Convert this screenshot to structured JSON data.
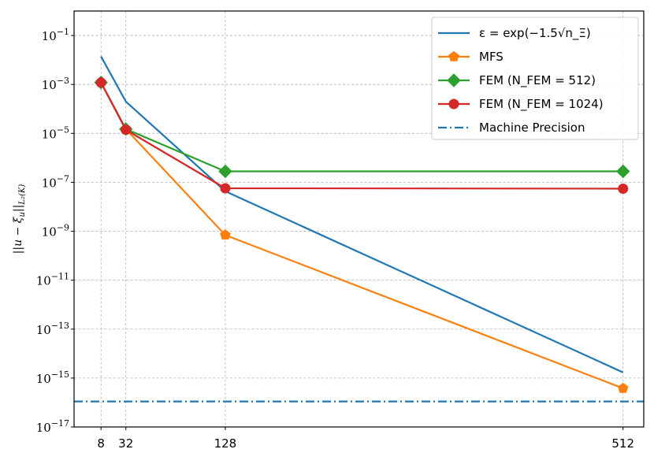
{
  "chart_data": {
    "type": "line",
    "yscale": "log",
    "xscale": "linear",
    "xlim": [
      -18,
      532
    ],
    "ylim": [
      1e-17,
      1
    ],
    "grid": true,
    "legend_position": "top-right",
    "ylabel": "||u − ξ_u||_{L_2(K)}",
    "xticks": [
      8,
      32,
      128,
      512
    ],
    "xtick_labels": [
      "8",
      "32",
      "128",
      "512"
    ],
    "yticks": [
      0.1,
      0.001,
      1e-05,
      1e-07,
      1e-09,
      1e-11,
      1e-13,
      1e-15,
      1e-17
    ],
    "ytick_labels": [
      {
        "base": "10",
        "exp": "−1"
      },
      {
        "base": "10",
        "exp": "−3"
      },
      {
        "base": "10",
        "exp": "−5"
      },
      {
        "base": "10",
        "exp": "−7"
      },
      {
        "base": "10",
        "exp": "−9"
      },
      {
        "base": "10",
        "exp": "−11"
      },
      {
        "base": "10",
        "exp": "−13"
      },
      {
        "base": "10",
        "exp": "−15"
      },
      {
        "base": "10",
        "exp": "−17"
      }
    ],
    "series": [
      {
        "name": "ε = exp(−1.5√n_Ξ)",
        "color": "#1f77b4",
        "marker": "none",
        "linestyle": "solid",
        "x": [
          8,
          32,
          128,
          512
        ],
        "y": [
          0.014,
          0.0002,
          4.3e-08,
          1.7e-15
        ]
      },
      {
        "name": "MFS",
        "color": "#ff7f0e",
        "marker": "pentagon",
        "linestyle": "solid",
        "x": [
          8,
          32,
          128,
          512
        ],
        "y": [
          0.0012,
          1.5e-05,
          7e-10,
          3.8e-16
        ]
      },
      {
        "name": "FEM (N_FEM = 512)",
        "color": "#2ca02c",
        "marker": "diamond",
        "linestyle": "solid",
        "x": [
          8,
          32,
          128,
          512
        ],
        "y": [
          0.0012,
          1.5e-05,
          2.8e-07,
          2.8e-07
        ]
      },
      {
        "name": "FEM (N_FEM = 1024)",
        "color": "#d62728",
        "marker": "circle",
        "linestyle": "solid",
        "x": [
          8,
          32,
          128,
          512
        ],
        "y": [
          0.0012,
          1.4e-05,
          5.7e-08,
          5.5e-08
        ]
      },
      {
        "name": "Machine Precision",
        "color": "#1f77b4",
        "marker": "none",
        "linestyle": "dashdot",
        "type": "hline",
        "y": 1.1e-16
      }
    ]
  }
}
